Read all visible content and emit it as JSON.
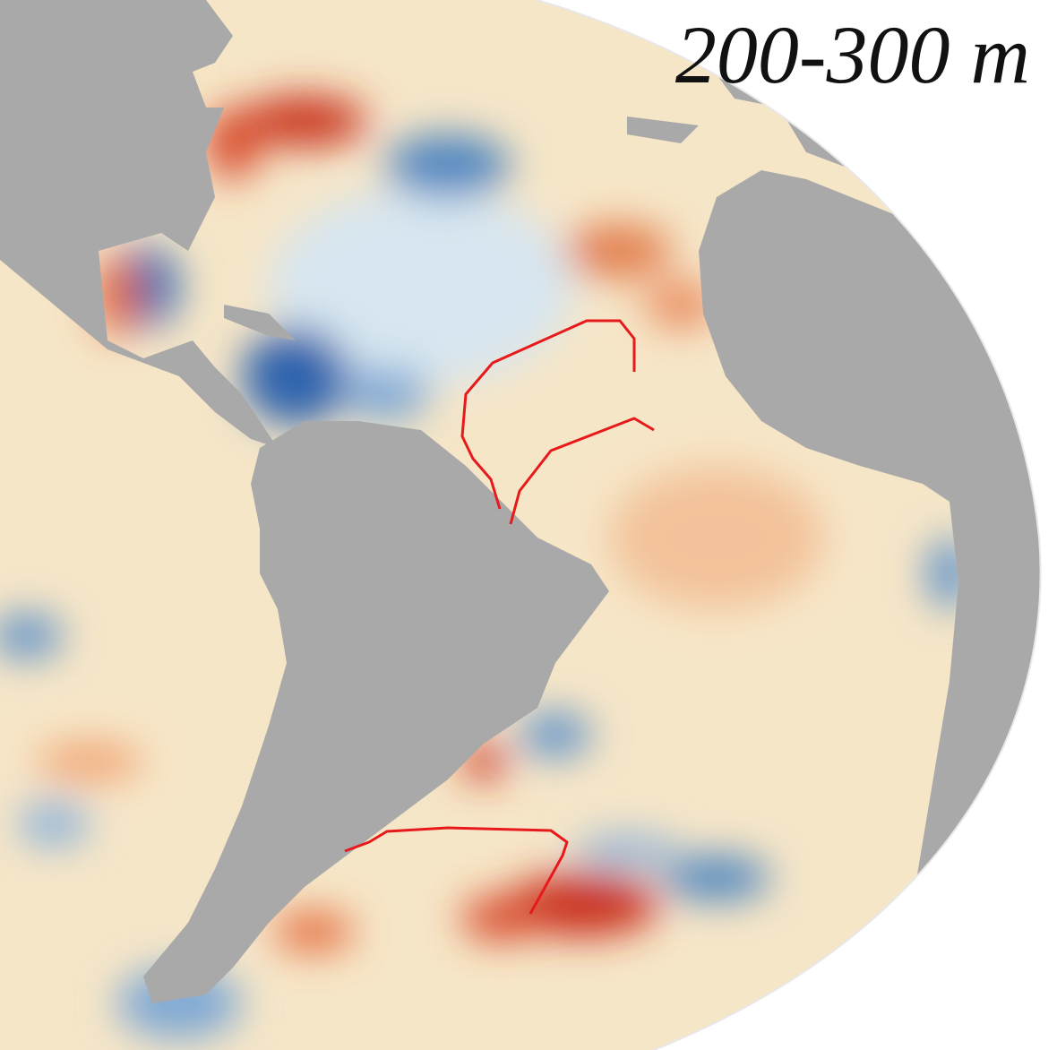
{
  "title": "200-300 m"
}
